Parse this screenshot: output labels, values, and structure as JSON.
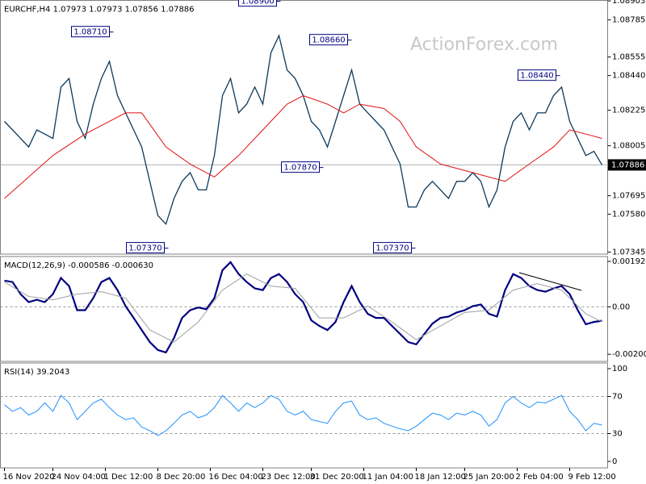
{
  "chart_data": [
    {
      "type": "line",
      "title": "EURCHF,H4  1.07973 1.07973 1.07856 1.07886",
      "watermark": "ActionForex.com",
      "xlim": [
        -0.5,
        74.7
      ],
      "ylim": [
        1.07333,
        1.08906
      ],
      "yticks": [
        1.08903,
        1.08785,
        1.08555,
        {
          "value": 1.0844,
          "label": "1.08440"
        },
        1.08225,
        1.08005,
        1.07695,
        {
          "value": 1.0758,
          "label": "1.07580"
        },
        1.07345
      ],
      "last": 1.07886,
      "series": [
        {
          "name": "EURCHF",
          "color": "#0b3a5c",
          "width": 1.3,
          "values": [
            1.08156,
            1.08103,
            1.0805,
            1.07997,
            1.08103,
            1.08077,
            1.0805,
            1.08369,
            1.08422,
            1.08156,
            1.0805,
            1.08263,
            1.08422,
            1.08528,
            1.08316,
            1.08209,
            1.08103,
            1.07997,
            1.07784,
            1.07572,
            1.07519,
            1.07678,
            1.07784,
            1.07838,
            1.07731,
            1.07731,
            1.07944,
            1.08316,
            1.08422,
            1.08209,
            1.08263,
            1.08369,
            1.08263,
            1.08581,
            1.08688,
            1.08475,
            1.08422,
            1.08316,
            1.08156,
            1.08103,
            1.07997,
            1.08156,
            1.08316,
            1.08475,
            1.08263,
            1.08209,
            1.08156,
            1.08103,
            1.07997,
            1.07891,
            1.07625,
            1.07625,
            1.07731,
            1.07784,
            1.07731,
            1.07678,
            1.07784,
            1.07784,
            1.07838,
            1.07784,
            1.07625,
            1.07731,
            1.07997,
            1.08156,
            1.08209,
            1.08103,
            1.08209,
            1.08209,
            1.08316,
            1.08369,
            1.08156,
            1.0805,
            1.07944,
            1.0797,
            1.07886
          ]
        },
        {
          "name": "MA",
          "color": "#e01010",
          "width": 1,
          "x": [
            0,
            6,
            10,
            15,
            17,
            20,
            23,
            26,
            29,
            32,
            35,
            37,
            40,
            42,
            44,
            47,
            49,
            51,
            54,
            58,
            62,
            65,
            68,
            70,
            72,
            74
          ],
          "values": [
            1.07678,
            1.07944,
            1.08077,
            1.08209,
            1.08209,
            1.07997,
            1.07891,
            1.07811,
            1.07944,
            1.08103,
            1.08263,
            1.08316,
            1.08263,
            1.08209,
            1.08263,
            1.08236,
            1.08156,
            1.07997,
            1.07891,
            1.07838,
            1.07784,
            1.07891,
            1.07997,
            1.08103,
            1.08077,
            1.0805
          ]
        }
      ],
      "annotations": [
        {
          "x": 13.5,
          "value": 1.0871,
          "label": "1.08710"
        },
        {
          "x": 34.2,
          "value": 1.089,
          "label": "1.08900"
        },
        {
          "x": 43,
          "value": 1.0866,
          "label": "1.08660"
        },
        {
          "x": 39.5,
          "value": 1.0787,
          "label": "1.07870"
        },
        {
          "x": 20.3,
          "value": 1.0737,
          "label": "1.07370"
        },
        {
          "x": 50.9,
          "value": 1.0737,
          "label": "1.07370"
        },
        {
          "x": 68.8,
          "value": 1.0844,
          "label": "1.08440"
        }
      ]
    },
    {
      "type": "line",
      "title": "MACD(12,26,9) -0.000586 -0.000630",
      "xlim": [
        -0.5,
        74.7
      ],
      "ylim": [
        -0.00231,
        0.00213
      ],
      "yticks": [
        0.001924,
        {
          "value": 0,
          "label": "0.00"
        },
        -0.002008
      ],
      "levels": [
        0
      ],
      "series": [
        {
          "name": "MACD",
          "color": "#000080",
          "width": 2.2,
          "values": [
            0.00111,
            0.00105,
            0.00054,
            0.0002,
            0.0003,
            0.0002,
            0.00054,
            0.00122,
            0.00088,
            -0.00014,
            -0.00014,
            0.00037,
            0.00105,
            0.00122,
            0.00071,
            3e-05,
            -0.00047,
            -0.00098,
            -0.00149,
            -0.00183,
            -0.00193,
            -0.00132,
            -0.00047,
            -0.00014,
            -3e-05,
            -0.0001,
            0.00037,
            0.00155,
            0.00189,
            0.00139,
            0.00105,
            0.00078,
            0.00071,
            0.00122,
            0.00139,
            0.00105,
            0.00054,
            0.0002,
            -0.00057,
            -0.00081,
            -0.00098,
            -0.00064,
            0.0002,
            0.00088,
            0.0002,
            -0.0003,
            -0.00047,
            -0.00047,
            -0.00081,
            -0.00115,
            -0.00149,
            -0.00159,
            -0.00115,
            -0.00071,
            -0.00047,
            -0.00041,
            -0.00024,
            -0.00014,
            3e-05,
            0.0001,
            -0.0003,
            -0.00041,
            0.00071,
            0.00139,
            0.00122,
            0.00088,
            0.00071,
            0.00064,
            0.00078,
            0.00088,
            0.00054,
            -0.00014,
            -0.00074,
            -0.00064,
            -0.00059
          ]
        },
        {
          "name": "Signal",
          "color": "#a0a0a0",
          "width": 1,
          "x": [
            0,
            3,
            6,
            9,
            12,
            15,
            18,
            21,
            24,
            27,
            30,
            33,
            36,
            39,
            42,
            45,
            48,
            51,
            54,
            57,
            60,
            63,
            66,
            69,
            72,
            74
          ],
          "values": [
            0.00105,
            0.00044,
            0.0003,
            0.00054,
            0.00064,
            0.00037,
            -0.00098,
            -0.00149,
            -0.00064,
            0.00071,
            0.00139,
            0.00088,
            0.00078,
            -0.00047,
            -0.00047,
            3e-05,
            -0.00064,
            -0.00139,
            -0.00081,
            -0.00024,
            -0.00014,
            0.00071,
            0.00098,
            0.00071,
            -0.0003,
            -0.00063
          ]
        }
      ]
    },
    {
      "type": "line",
      "title": "RSI(14) 39.2043",
      "xlim": [
        -0.5,
        74.7
      ],
      "ylim": [
        -7,
        106.1
      ],
      "yticks": [
        100,
        70,
        30,
        0
      ],
      "levels": [
        70,
        30
      ],
      "xticks": [
        {
          "value": 0,
          "label": "16 Nov 2020"
        },
        {
          "value": 6,
          "label": "24 Nov 04:00"
        },
        {
          "value": 12.5,
          "label": "1 Dec 12:00"
        },
        {
          "value": 19,
          "label": "8 Dec 20:00"
        },
        {
          "value": 25.5,
          "label": "16 Dec 04:00"
        },
        {
          "value": 32,
          "label": "23 Dec 12:00"
        },
        {
          "value": 38,
          "label": "31 Dec 20:00"
        },
        {
          "value": 44.5,
          "label": "11 Jan 04:00"
        },
        {
          "value": 51,
          "label": "18 Jan 12:00"
        },
        {
          "value": 57,
          "label": "25 Jan 20:00"
        },
        {
          "value": 63.5,
          "label": "2 Feb 04:00"
        },
        {
          "value": 70,
          "label": "9 Feb 12:00"
        }
      ],
      "series": [
        {
          "name": "RSI",
          "color": "#1e90ff",
          "width": 1,
          "values": [
            61,
            54,
            58,
            50,
            54,
            63,
            54,
            71,
            63,
            45,
            54,
            63,
            67,
            58,
            50,
            45,
            47,
            37,
            33,
            28,
            33,
            41,
            50,
            54,
            47,
            50,
            58,
            71,
            63,
            54,
            63,
            58,
            63,
            71,
            67,
            54,
            50,
            54,
            45,
            43,
            41,
            54,
            63,
            65,
            50,
            45,
            47,
            41,
            38,
            35,
            33,
            38,
            45,
            52,
            50,
            45,
            52,
            50,
            54,
            50,
            38,
            45,
            63,
            70,
            63,
            58,
            64,
            63,
            67,
            71,
            54,
            45,
            33,
            41,
            39.2
          ]
        }
      ]
    }
  ]
}
